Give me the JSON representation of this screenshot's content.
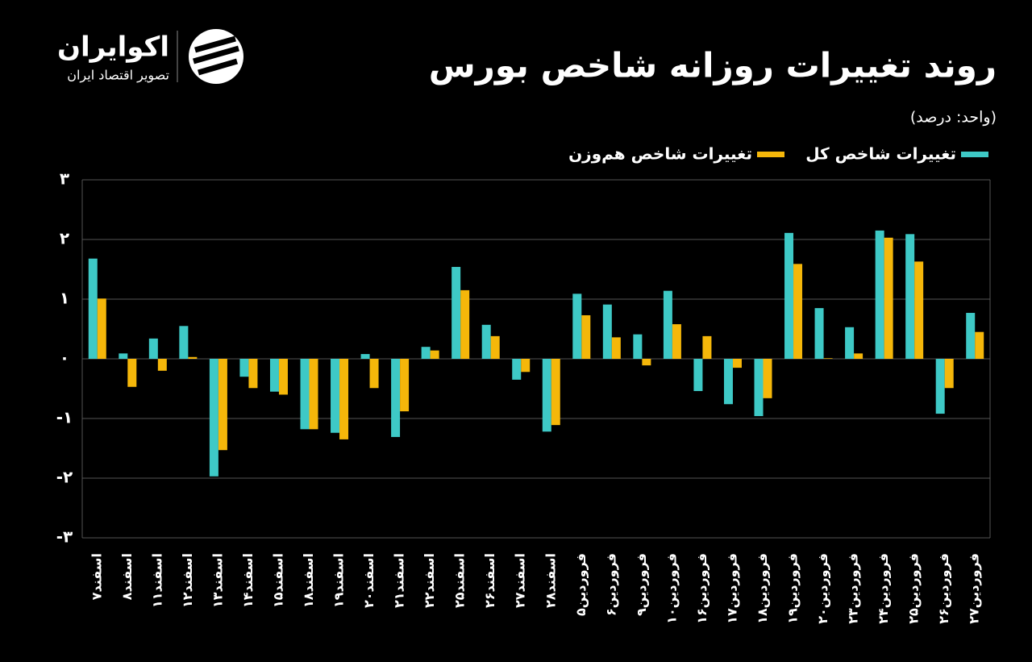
{
  "brand": {
    "name": "اکوایران",
    "tagline": "تصویر اقتصاد ایران"
  },
  "chart_data": {
    "type": "bar",
    "title": "روند تغییرات روزانه شاخص بورس",
    "subtitle": "(واحد: درصد)",
    "categories": [
      "اسفند۷",
      "اسفند۸",
      "اسفند۱۱",
      "اسفند۱۲",
      "اسفند۱۳",
      "اسفند۱۴",
      "اسفند۱۵",
      "اسفند۱۸",
      "اسفند۱۹",
      "اسفند۲۰",
      "اسفند۲۱",
      "اسفند۲۲",
      "اسفند۲۵",
      "اسفند۲۶",
      "اسفند۲۷",
      "اسفند۲۸",
      "فروردین۵",
      "فروردین۶",
      "فروردین۹",
      "فروردین۱۰",
      "فروردین۱۶",
      "فروردین۱۷",
      "فروردین۱۸",
      "فروردین۱۹",
      "فروردین۲۰",
      "فروردین۲۳",
      "فروردین۲۴",
      "فروردین۲۵",
      "فروردین۲۶",
      "فروردین۲۷"
    ],
    "series": [
      {
        "name": "تغییرات شاخص کل",
        "color": "#3ec9c6",
        "values": [
          1.68,
          0.09,
          0.34,
          0.55,
          -1.97,
          -0.3,
          -0.55,
          -1.18,
          -1.24,
          0.08,
          -1.31,
          0.2,
          1.54,
          0.57,
          -0.35,
          -1.22,
          1.09,
          0.91,
          0.41,
          1.14,
          -0.54,
          -0.76,
          -0.96,
          2.11,
          0.85,
          0.53,
          2.15,
          2.09,
          -0.92,
          0.77
        ]
      },
      {
        "name": "تغییرات شاخص هم‌وزن",
        "color": "#f5b70a",
        "values": [
          1.01,
          -0.47,
          -0.2,
          0.03,
          -1.53,
          -0.49,
          -0.6,
          -1.18,
          -1.35,
          -0.49,
          -0.88,
          0.14,
          1.15,
          0.38,
          -0.22,
          -1.11,
          0.73,
          0.36,
          -0.11,
          0.58,
          0.38,
          -0.15,
          -0.66,
          1.59,
          0.01,
          0.09,
          2.03,
          1.63,
          -0.49,
          0.45
        ]
      }
    ],
    "ylim": [
      -3,
      3
    ],
    "yticks": [
      {
        "value": -3,
        "label": "-۳"
      },
      {
        "value": -2,
        "label": "-۲"
      },
      {
        "value": -1,
        "label": "-۱"
      },
      {
        "value": 0,
        "label": "۰"
      },
      {
        "value": 1,
        "label": "۱"
      },
      {
        "value": 2,
        "label": "۲"
      },
      {
        "value": 3,
        "label": "۳"
      }
    ],
    "grid": true
  }
}
